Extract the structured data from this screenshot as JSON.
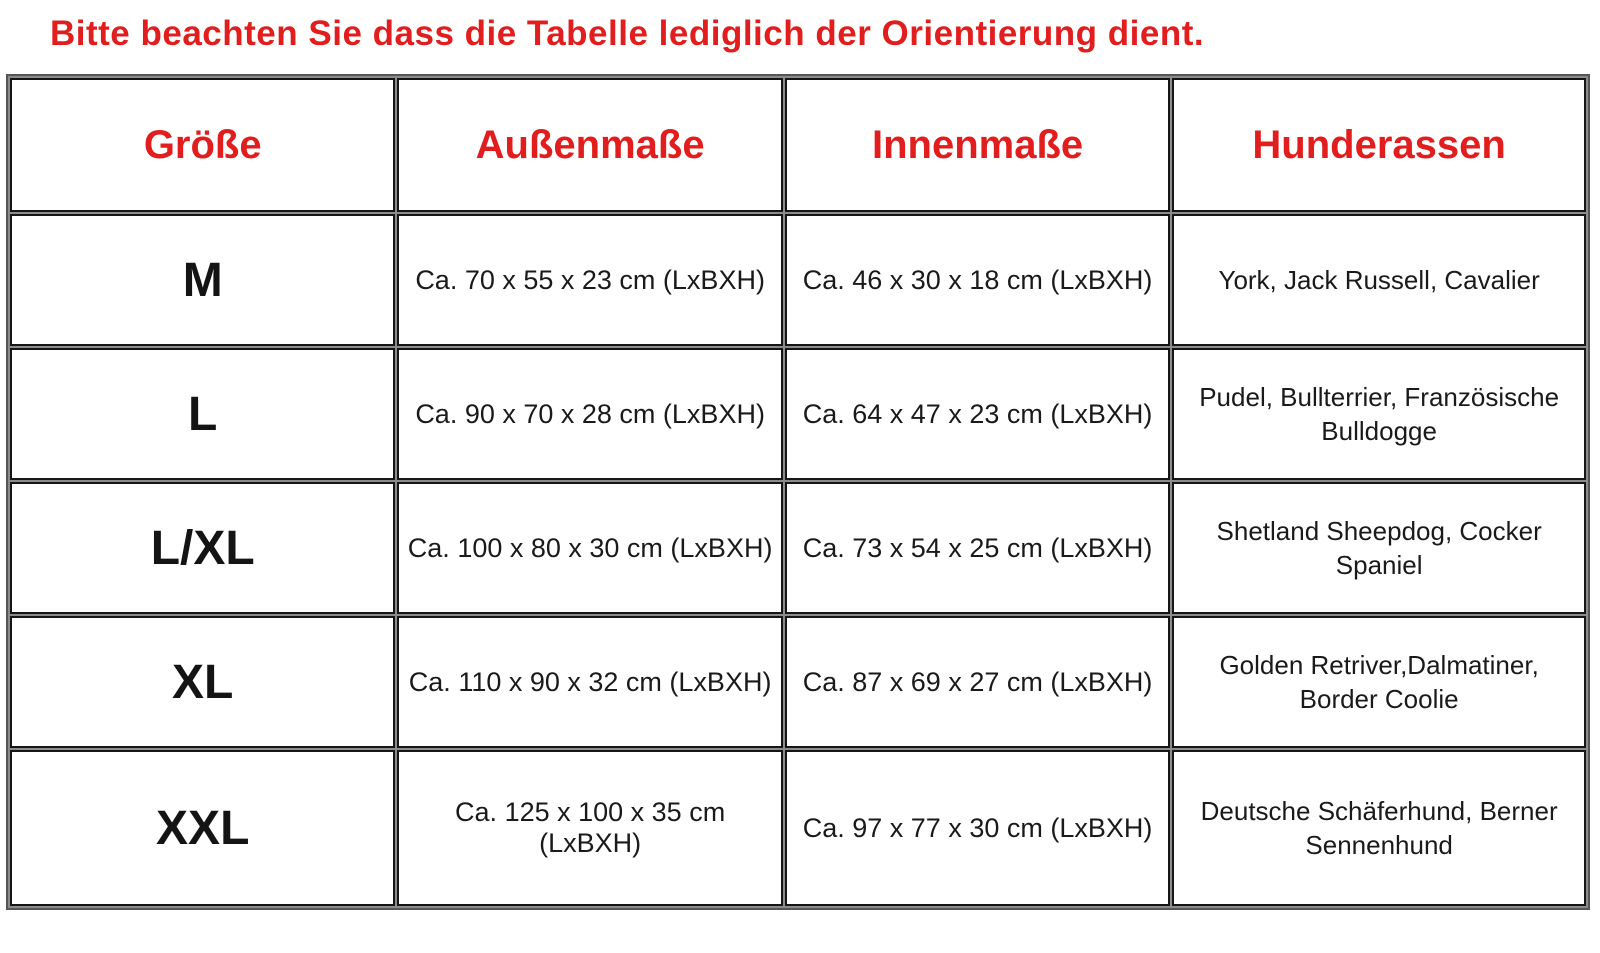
{
  "notice": "Bitte beachten Sie dass die Tabelle lediglich der Orientierung dient.",
  "colors": {
    "accent_red": "#e21d1d",
    "text_black": "#1a1a1a",
    "border_black": "#161616",
    "border_gray": "#8c8c8c"
  },
  "table": {
    "headers": [
      "Größe",
      "Außenmaße",
      "Innenmaße",
      "Hunderassen"
    ],
    "rows": [
      {
        "size": "M",
        "outer": "Ca. 70 x 55 x 23 cm (LxBXH)",
        "inner": "Ca. 46 x 30 x 18 cm (LxBXH)",
        "breeds": "York, Jack Russell, Cavalier"
      },
      {
        "size": "L",
        "outer": "Ca. 90 x 70 x 28 cm (LxBXH)",
        "inner": "Ca. 64 x 47 x 23 cm (LxBXH)",
        "breeds": "Pudel, Bullterrier, Französische Bulldogge"
      },
      {
        "size": "L/XL",
        "outer": "Ca. 100 x 80 x 30 cm (LxBXH)",
        "inner": "Ca. 73 x 54 x 25 cm (LxBXH)",
        "breeds": "Shetland Sheepdog, Cocker Spaniel"
      },
      {
        "size": "XL",
        "outer": "Ca. 110 x 90 x 32 cm (LxBXH)",
        "inner": "Ca. 87 x 69 x 27 cm (LxBXH)",
        "breeds": "Golden Retriver,Dalmatiner, Border Coolie"
      },
      {
        "size": "XXL",
        "outer": "Ca. 125 x 100 x 35 cm (LxBXH)",
        "inner": "Ca. 97 x 77 x 30 cm (LxBXH)",
        "breeds": "Deutsche Schäferhund, Berner Sennenhund"
      }
    ]
  }
}
